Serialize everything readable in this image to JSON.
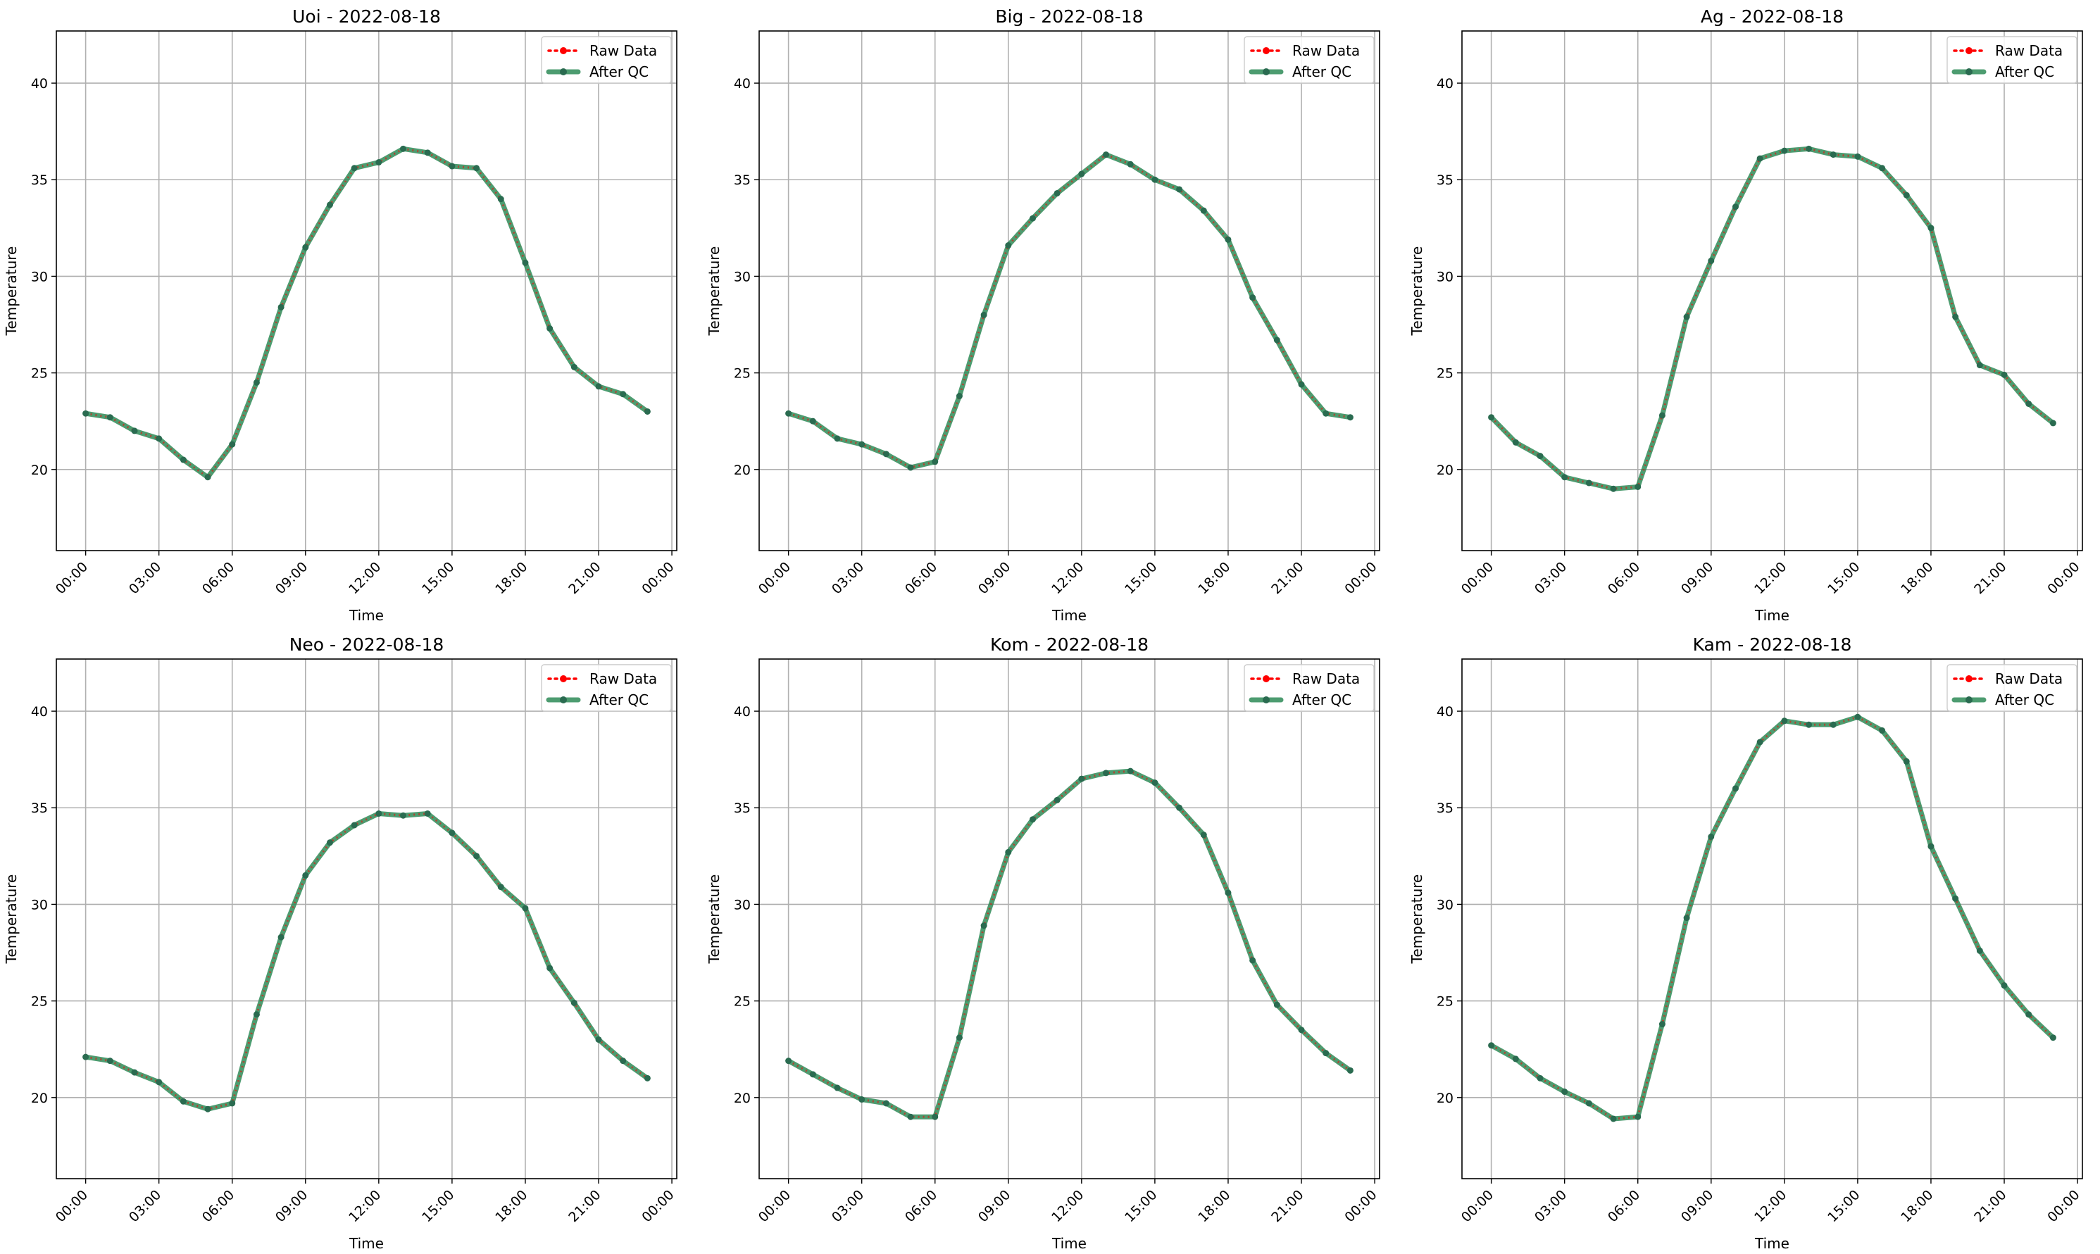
{
  "legend": {
    "raw_label": "Raw Data",
    "qc_label": "After QC",
    "placement": "top-right"
  },
  "colors": {
    "raw": "#ff0000",
    "qc": "#2e8b57",
    "grid": "#b0b0b0",
    "axes": "#000000"
  },
  "chart_data": [
    {
      "type": "line",
      "title": "Uoi - 2022-08-18",
      "xlabel": "Time",
      "ylabel": "Temperature",
      "xticks": [
        "00:00",
        "03:00",
        "06:00",
        "09:00",
        "12:00",
        "15:00",
        "18:00",
        "21:00",
        "00:00"
      ],
      "yticks": [
        20,
        25,
        30,
        35,
        40
      ],
      "xlim": [
        "2022-08-18 -01:12",
        "2022-08-19 00:12"
      ],
      "ylim": [
        15.8,
        42.7
      ],
      "grid": true,
      "x": [
        "00:00",
        "01:00",
        "02:00",
        "03:00",
        "04:00",
        "05:00",
        "06:00",
        "07:00",
        "08:00",
        "09:00",
        "10:00",
        "11:00",
        "12:00",
        "13:00",
        "14:00",
        "15:00",
        "16:00",
        "17:00",
        "18:00",
        "19:00",
        "20:00",
        "21:00",
        "22:00",
        "23:00"
      ],
      "series": [
        {
          "name": "Raw Data",
          "values": [
            22.9,
            22.7,
            22.0,
            21.6,
            20.5,
            19.6,
            21.3,
            24.5,
            28.4,
            31.5,
            33.7,
            35.6,
            35.9,
            36.6,
            36.4,
            35.7,
            35.6,
            34.0,
            30.7,
            27.3,
            25.3,
            24.3,
            23.9,
            23.0
          ]
        },
        {
          "name": "After QC",
          "values": [
            22.9,
            22.7,
            22.0,
            21.6,
            20.5,
            19.6,
            21.3,
            24.5,
            28.4,
            31.5,
            33.7,
            35.6,
            35.9,
            36.6,
            36.4,
            35.7,
            35.6,
            34.0,
            30.7,
            27.3,
            25.3,
            24.3,
            23.9,
            23.0
          ]
        }
      ]
    },
    {
      "type": "line",
      "title": "Big - 2022-08-18",
      "xlabel": "Time",
      "ylabel": "Temperature",
      "xticks": [
        "00:00",
        "03:00",
        "06:00",
        "09:00",
        "12:00",
        "15:00",
        "18:00",
        "21:00",
        "00:00"
      ],
      "yticks": [
        20,
        25,
        30,
        35,
        40
      ],
      "xlim": [
        "2022-08-18 -01:12",
        "2022-08-19 00:12"
      ],
      "ylim": [
        15.8,
        42.7
      ],
      "grid": true,
      "x": [
        "00:00",
        "01:00",
        "02:00",
        "03:00",
        "04:00",
        "05:00",
        "06:00",
        "07:00",
        "08:00",
        "09:00",
        "10:00",
        "11:00",
        "12:00",
        "13:00",
        "14:00",
        "15:00",
        "16:00",
        "17:00",
        "18:00",
        "19:00",
        "20:00",
        "21:00",
        "22:00",
        "23:00"
      ],
      "series": [
        {
          "name": "Raw Data",
          "values": [
            22.9,
            22.5,
            21.6,
            21.3,
            20.8,
            20.1,
            20.4,
            23.8,
            28.0,
            31.6,
            33.0,
            34.3,
            35.3,
            36.3,
            35.8,
            35.0,
            34.5,
            33.4,
            31.9,
            28.9,
            26.7,
            24.4,
            22.9,
            22.7
          ]
        },
        {
          "name": "After QC",
          "values": [
            22.9,
            22.5,
            21.6,
            21.3,
            20.8,
            20.1,
            20.4,
            23.8,
            28.0,
            31.6,
            33.0,
            34.3,
            35.3,
            36.3,
            35.8,
            35.0,
            34.5,
            33.4,
            31.9,
            28.9,
            26.7,
            24.4,
            22.9,
            22.7
          ]
        }
      ]
    },
    {
      "type": "line",
      "title": "Ag - 2022-08-18",
      "xlabel": "Time",
      "ylabel": "Temperature",
      "xticks": [
        "00:00",
        "03:00",
        "06:00",
        "09:00",
        "12:00",
        "15:00",
        "18:00",
        "21:00",
        "00:00"
      ],
      "yticks": [
        20,
        25,
        30,
        35,
        40
      ],
      "xlim": [
        "2022-08-18 -01:12",
        "2022-08-19 00:12"
      ],
      "ylim": [
        15.8,
        42.7
      ],
      "grid": true,
      "x": [
        "00:00",
        "01:00",
        "02:00",
        "03:00",
        "04:00",
        "05:00",
        "06:00",
        "07:00",
        "08:00",
        "09:00",
        "10:00",
        "11:00",
        "12:00",
        "13:00",
        "14:00",
        "15:00",
        "16:00",
        "17:00",
        "18:00",
        "19:00",
        "20:00",
        "21:00",
        "22:00",
        "23:00"
      ],
      "series": [
        {
          "name": "Raw Data",
          "values": [
            22.7,
            21.4,
            20.7,
            19.6,
            19.3,
            19.0,
            19.1,
            22.8,
            27.9,
            30.8,
            33.6,
            36.1,
            36.5,
            36.6,
            36.3,
            36.2,
            35.6,
            34.2,
            32.5,
            27.9,
            25.4,
            24.9,
            23.4,
            22.4
          ]
        },
        {
          "name": "After QC",
          "values": [
            22.7,
            21.4,
            20.7,
            19.6,
            19.3,
            19.0,
            19.1,
            22.8,
            27.9,
            30.8,
            33.6,
            36.1,
            36.5,
            36.6,
            36.3,
            36.2,
            35.6,
            34.2,
            32.5,
            27.9,
            25.4,
            24.9,
            23.4,
            22.4
          ]
        }
      ]
    },
    {
      "type": "line",
      "title": "Neo - 2022-08-18",
      "xlabel": "Time",
      "ylabel": "Temperature",
      "xticks": [
        "00:00",
        "03:00",
        "06:00",
        "09:00",
        "12:00",
        "15:00",
        "18:00",
        "21:00",
        "00:00"
      ],
      "yticks": [
        20,
        25,
        30,
        35,
        40
      ],
      "xlim": [
        "2022-08-18 -01:12",
        "2022-08-19 00:12"
      ],
      "ylim": [
        15.8,
        42.7
      ],
      "grid": true,
      "x": [
        "00:00",
        "01:00",
        "02:00",
        "03:00",
        "04:00",
        "05:00",
        "06:00",
        "07:00",
        "08:00",
        "09:00",
        "10:00",
        "11:00",
        "12:00",
        "13:00",
        "14:00",
        "15:00",
        "16:00",
        "17:00",
        "18:00",
        "19:00",
        "20:00",
        "21:00",
        "22:00",
        "23:00"
      ],
      "series": [
        {
          "name": "Raw Data",
          "values": [
            22.1,
            21.9,
            21.3,
            20.8,
            19.8,
            19.4,
            19.7,
            24.3,
            28.3,
            31.5,
            33.2,
            34.1,
            34.7,
            34.6,
            34.7,
            33.7,
            32.5,
            30.9,
            29.8,
            26.7,
            24.9,
            23.0,
            21.9,
            21.0
          ]
        },
        {
          "name": "After QC",
          "values": [
            22.1,
            21.9,
            21.3,
            20.8,
            19.8,
            19.4,
            19.7,
            24.3,
            28.3,
            31.5,
            33.2,
            34.1,
            34.7,
            34.6,
            34.7,
            33.7,
            32.5,
            30.9,
            29.8,
            26.7,
            24.9,
            23.0,
            21.9,
            21.0
          ]
        }
      ]
    },
    {
      "type": "line",
      "title": "Kom - 2022-08-18",
      "xlabel": "Time",
      "ylabel": "Temperature",
      "xticks": [
        "00:00",
        "03:00",
        "06:00",
        "09:00",
        "12:00",
        "15:00",
        "18:00",
        "21:00",
        "00:00"
      ],
      "yticks": [
        20,
        25,
        30,
        35,
        40
      ],
      "xlim": [
        "2022-08-18 -01:12",
        "2022-08-19 00:12"
      ],
      "ylim": [
        15.8,
        42.7
      ],
      "grid": true,
      "x": [
        "00:00",
        "01:00",
        "02:00",
        "03:00",
        "04:00",
        "05:00",
        "06:00",
        "07:00",
        "08:00",
        "09:00",
        "10:00",
        "11:00",
        "12:00",
        "13:00",
        "14:00",
        "15:00",
        "16:00",
        "17:00",
        "18:00",
        "19:00",
        "20:00",
        "21:00",
        "22:00",
        "23:00"
      ],
      "series": [
        {
          "name": "Raw Data",
          "values": [
            21.9,
            21.2,
            20.5,
            19.9,
            19.7,
            19.0,
            19.0,
            23.1,
            28.9,
            32.7,
            34.4,
            35.4,
            36.5,
            36.8,
            36.9,
            36.3,
            35.0,
            33.6,
            30.6,
            27.1,
            24.8,
            23.5,
            22.3,
            21.4
          ]
        },
        {
          "name": "After QC",
          "values": [
            21.9,
            21.2,
            20.5,
            19.9,
            19.7,
            19.0,
            19.0,
            23.1,
            28.9,
            32.7,
            34.4,
            35.4,
            36.5,
            36.8,
            36.9,
            36.3,
            35.0,
            33.6,
            30.6,
            27.1,
            24.8,
            23.5,
            22.3,
            21.4
          ]
        }
      ]
    },
    {
      "type": "line",
      "title": "Kam - 2022-08-18",
      "xlabel": "Time",
      "ylabel": "Temperature",
      "xticks": [
        "00:00",
        "03:00",
        "06:00",
        "09:00",
        "12:00",
        "15:00",
        "18:00",
        "21:00",
        "00:00"
      ],
      "yticks": [
        20,
        25,
        30,
        35,
        40
      ],
      "xlim": [
        "2022-08-18 -01:12",
        "2022-08-19 00:12"
      ],
      "ylim": [
        15.8,
        42.7
      ],
      "grid": true,
      "x": [
        "00:00",
        "01:00",
        "02:00",
        "03:00",
        "04:00",
        "05:00",
        "06:00",
        "07:00",
        "08:00",
        "09:00",
        "10:00",
        "11:00",
        "12:00",
        "13:00",
        "14:00",
        "15:00",
        "16:00",
        "17:00",
        "18:00",
        "19:00",
        "20:00",
        "21:00",
        "22:00",
        "23:00"
      ],
      "series": [
        {
          "name": "Raw Data",
          "values": [
            22.7,
            22.0,
            21.0,
            20.3,
            19.7,
            18.9,
            19.0,
            23.8,
            29.3,
            33.5,
            36.0,
            38.4,
            39.5,
            39.3,
            39.3,
            39.7,
            39.0,
            37.4,
            33.0,
            30.3,
            27.6,
            25.8,
            24.3,
            23.1
          ]
        },
        {
          "name": "After QC",
          "values": [
            22.7,
            22.0,
            21.0,
            20.3,
            19.7,
            18.9,
            19.0,
            23.8,
            29.3,
            33.5,
            36.0,
            38.4,
            39.5,
            39.3,
            39.3,
            39.7,
            39.0,
            37.4,
            33.0,
            30.3,
            27.6,
            25.8,
            24.3,
            23.1
          ]
        }
      ]
    }
  ]
}
